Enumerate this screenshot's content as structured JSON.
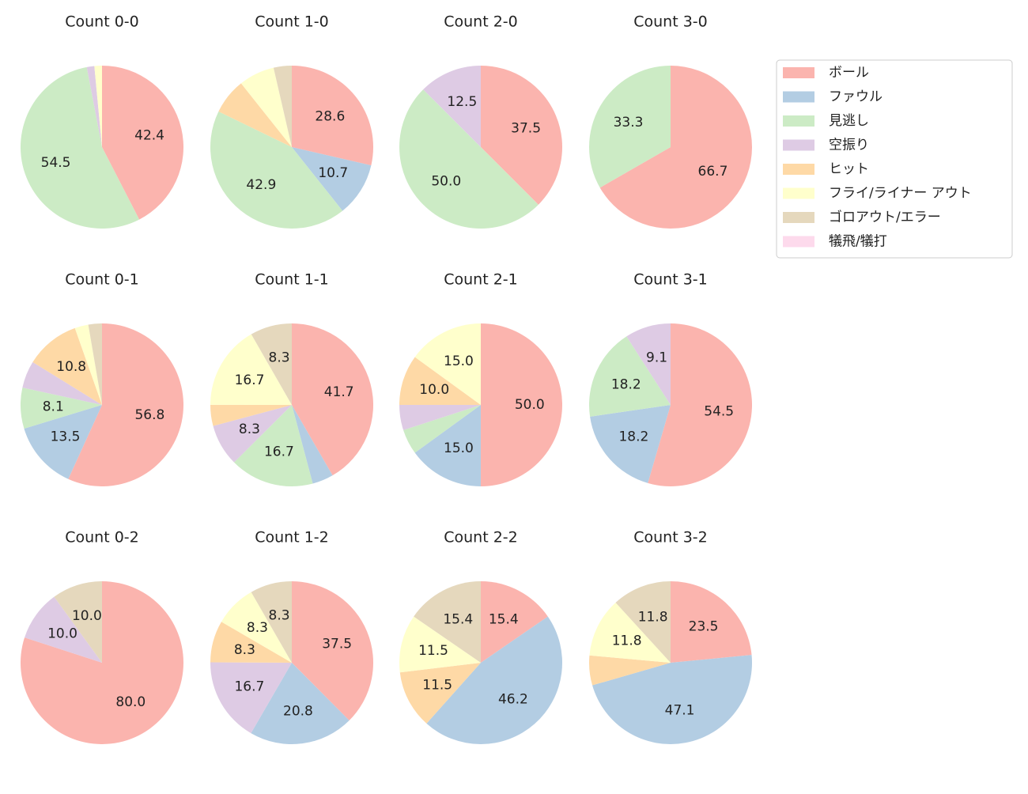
{
  "legend": {
    "labels": [
      "ボール",
      "ファウル",
      "見逃し",
      "空振り",
      "ヒット",
      "フライ/ライナー アウト",
      "ゴロアウト/エラー",
      "犠飛/犠打"
    ],
    "colors": [
      "#fbb4ae",
      "#b3cde3",
      "#ccebc5",
      "#decbe4",
      "#fed9a6",
      "#ffffcc",
      "#e5d8bd",
      "#fddaec"
    ]
  },
  "chart_data": [
    {
      "type": "pie",
      "title": "Count 0-0",
      "values": [
        42.4,
        0,
        54.5,
        1.5,
        0,
        1.5,
        0,
        0
      ],
      "value_labels": [
        "42.4",
        null,
        "54.5",
        null,
        null,
        null,
        null,
        null
      ]
    },
    {
      "type": "pie",
      "title": "Count 1-0",
      "values": [
        28.6,
        10.7,
        42.9,
        0,
        7.1,
        7.1,
        3.6,
        0
      ],
      "value_labels": [
        "28.6",
        "10.7",
        "42.9",
        null,
        null,
        null,
        null,
        null
      ]
    },
    {
      "type": "pie",
      "title": "Count 2-0",
      "values": [
        37.5,
        0,
        50.0,
        12.5,
        0,
        0,
        0,
        0
      ],
      "value_labels": [
        "37.5",
        null,
        "50.0",
        "12.5",
        null,
        null,
        null,
        null
      ]
    },
    {
      "type": "pie",
      "title": "Count 3-0",
      "values": [
        66.7,
        0,
        33.3,
        0,
        0,
        0,
        0,
        0
      ],
      "value_labels": [
        "66.7",
        null,
        "33.3",
        null,
        null,
        null,
        null,
        null
      ]
    },
    {
      "type": "pie",
      "title": "Count 0-1",
      "values": [
        56.8,
        13.5,
        8.1,
        5.4,
        10.8,
        2.7,
        2.7,
        0
      ],
      "value_labels": [
        "56.8",
        "13.5",
        "8.1",
        null,
        "10.8",
        null,
        null,
        null
      ]
    },
    {
      "type": "pie",
      "title": "Count 1-1",
      "values": [
        41.7,
        4.2,
        16.7,
        8.3,
        4.2,
        16.7,
        8.3,
        0
      ],
      "value_labels": [
        "41.7",
        null,
        "16.7",
        "8.3",
        null,
        "16.7",
        "8.3",
        null
      ]
    },
    {
      "type": "pie",
      "title": "Count 2-1",
      "values": [
        50.0,
        15.0,
        5.0,
        5.0,
        10.0,
        15.0,
        0,
        0
      ],
      "value_labels": [
        "50.0",
        "15.0",
        null,
        null,
        "10.0",
        "15.0",
        null,
        null
      ]
    },
    {
      "type": "pie",
      "title": "Count 3-1",
      "values": [
        54.5,
        18.2,
        18.2,
        9.1,
        0,
        0,
        0,
        0
      ],
      "value_labels": [
        "54.5",
        "18.2",
        "18.2",
        "9.1",
        null,
        null,
        null,
        null
      ]
    },
    {
      "type": "pie",
      "title": "Count 0-2",
      "values": [
        80.0,
        0,
        0,
        10.0,
        0,
        0,
        10.0,
        0
      ],
      "value_labels": [
        "80.0",
        null,
        null,
        "10.0",
        null,
        null,
        "10.0",
        null
      ]
    },
    {
      "type": "pie",
      "title": "Count 1-2",
      "values": [
        37.5,
        20.8,
        0,
        16.7,
        8.3,
        8.3,
        8.3,
        0
      ],
      "value_labels": [
        "37.5",
        "20.8",
        null,
        "16.7",
        "8.3",
        "8.3",
        "8.3",
        null
      ]
    },
    {
      "type": "pie",
      "title": "Count 2-2",
      "values": [
        15.4,
        46.2,
        0,
        0,
        11.5,
        11.5,
        15.4,
        0
      ],
      "value_labels": [
        "15.4",
        "46.2",
        null,
        null,
        "11.5",
        "11.5",
        "15.4",
        null
      ]
    },
    {
      "type": "pie",
      "title": "Count 3-2",
      "values": [
        23.5,
        47.1,
        0,
        0,
        5.9,
        11.8,
        11.8,
        0
      ],
      "value_labels": [
        "23.5",
        "47.1",
        null,
        null,
        null,
        "11.8",
        "11.8",
        null
      ]
    }
  ]
}
